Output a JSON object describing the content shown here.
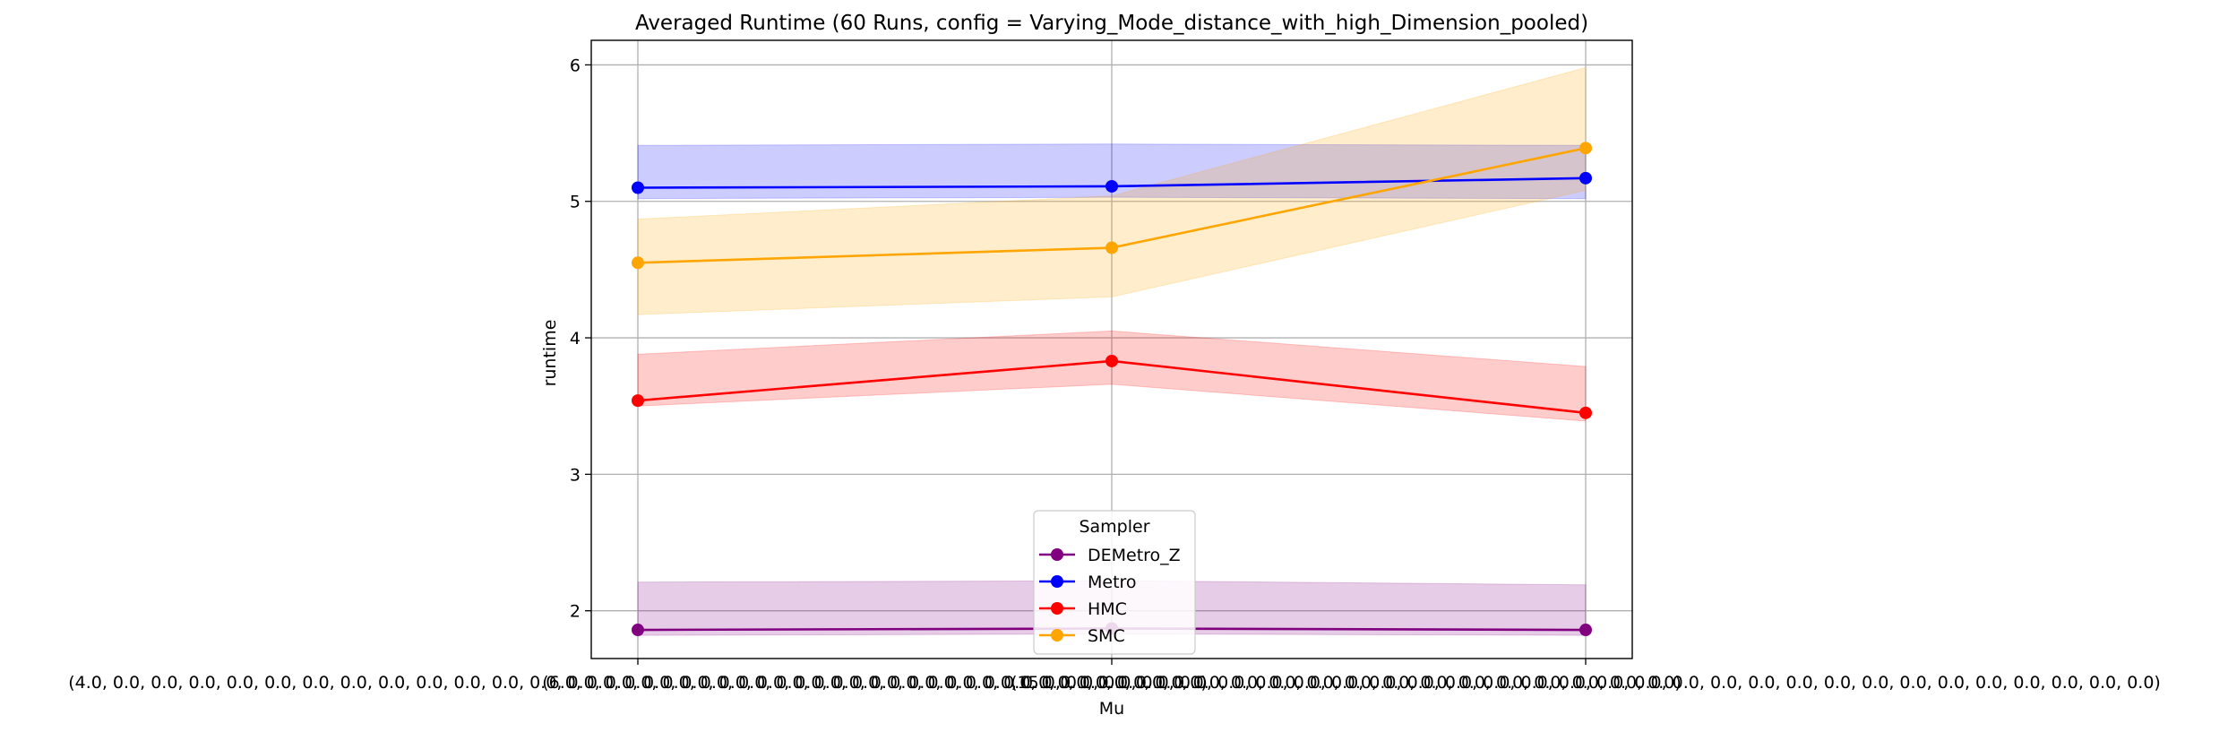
{
  "chart_data": {
    "type": "line",
    "title": "Averaged Runtime (60 Runs, config = Varying_Mode_distance_with_high_Dimension_pooled)",
    "xlabel": "Mu",
    "ylabel": "runtime",
    "categories": [
      "(4.0, 0.0, 0.0, 0.0, 0.0, 0.0, 0.0, 0.0, 0.0, 0.0, 0.0, 0.0, 0.0, 0.0, 0.0, 0.0, 0.0, 0.0, 0.0, 0.0, 0.0, 0.0, 0.0, 0.0, 0.0, 0.0, 0.0, 0.0, 0.0, 0.0)",
      "(6.0, 0.0, 0.0, 0.0, 0.0, 0.0, 0.0, 0.0, 0.0, 0.0, 0.0, 0.0, 0.0, 0.0, 0.0, 0.0, 0.0, 0.0, 0.0, 0.0, 0.0, 0.0, 0.0, 0.0, 0.0, 0.0, 0.0, 0.0, 0.0, 0.0)",
      "(15.0, 0.0, 0.0, 0.0, 0.0, 0.0, 0.0, 0.0, 0.0, 0.0, 0.0, 0.0, 0.0, 0.0, 0.0, 0.0, 0.0, 0.0, 0.0, 0.0, 0.0, 0.0, 0.0, 0.0, 0.0, 0.0, 0.0, 0.0, 0.0, 0.0)"
    ],
    "ylim": [
      1.65,
      6.18
    ],
    "yticks": [
      2,
      3,
      4,
      5,
      6
    ],
    "grid": true,
    "legend": {
      "title": "Sampler",
      "placement": "lower center"
    },
    "series": [
      {
        "name": "DEMetro_Z",
        "color": "#800080",
        "fill": "#800080",
        "values": [
          1.86,
          1.87,
          1.86
        ],
        "band_low": [
          1.82,
          1.83,
          1.82
        ],
        "band_high": [
          2.21,
          2.22,
          2.19
        ]
      },
      {
        "name": "Metro",
        "color": "#0000ff",
        "fill": "#0000ff",
        "values": [
          5.1,
          5.11,
          5.17
        ],
        "band_low": [
          5.02,
          5.03,
          5.02
        ],
        "band_high": [
          5.41,
          5.42,
          5.41
        ]
      },
      {
        "name": "HMC",
        "color": "#ff0000",
        "fill": "#ff0000",
        "values": [
          3.54,
          3.83,
          3.45
        ],
        "band_low": [
          3.5,
          3.66,
          3.39
        ],
        "band_high": [
          3.88,
          4.05,
          3.79
        ]
      },
      {
        "name": "SMC",
        "color": "#ffa500",
        "fill": "#ffa500",
        "values": [
          4.55,
          4.66,
          5.39
        ],
        "band_low": [
          4.17,
          4.3,
          5.08
        ],
        "band_high": [
          4.87,
          5.04,
          5.98
        ]
      }
    ]
  }
}
